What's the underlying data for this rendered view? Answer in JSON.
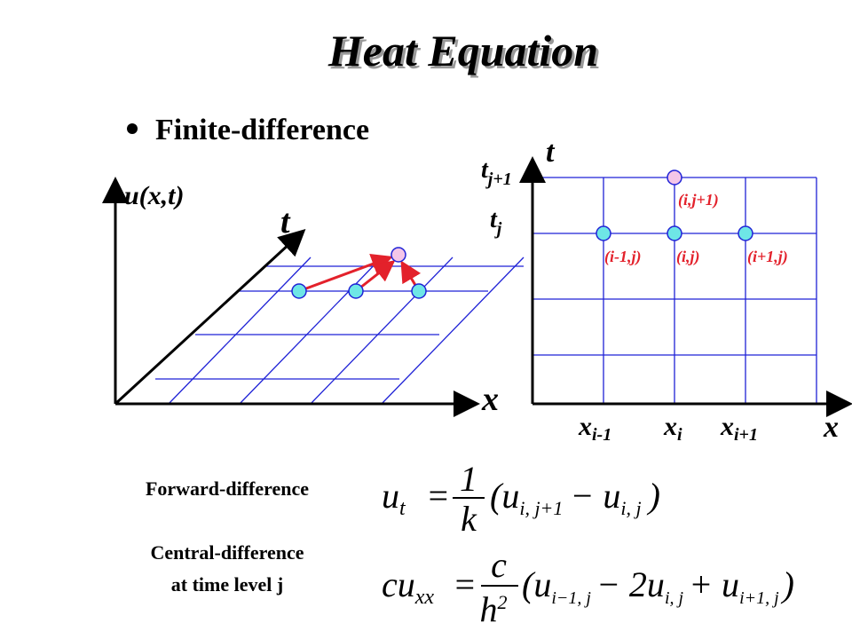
{
  "title": "Heat Equation",
  "bullet": "Finite-difference",
  "left_diagram": {
    "u_label": "u(x,t)",
    "t_label": "t",
    "x_label": "x"
  },
  "right_grid": {
    "t_label": "t",
    "x_label": "x",
    "t_ticks": [
      {
        "base": "t",
        "sub": "j+1"
      },
      {
        "base": "t",
        "sub": "j"
      }
    ],
    "x_ticks": [
      {
        "base": "x",
        "sub": "i-1"
      },
      {
        "base": "x",
        "sub": "i"
      },
      {
        "base": "x",
        "sub": "i+1"
      }
    ],
    "nodes": [
      "(i,j+1)",
      "(i-1,j)",
      "(i,j)",
      "(i+1,j)"
    ]
  },
  "equations": [
    {
      "label": "Forward-difference",
      "lhs": "u",
      "lhs_sub": "t",
      "equals": "=",
      "num": "1",
      "den": "k",
      "terms": [
        {
          "text": "(u",
          "sub": "i, j+1"
        },
        {
          "text": "− u",
          "sub": "i, j"
        },
        {
          "text": ")"
        }
      ]
    },
    {
      "label": "Central-difference",
      "label2": "at time level j",
      "lhs": "cu",
      "lhs_sub": "xx",
      "equals": "=",
      "num": "c",
      "den": "h",
      "den_sup": "2",
      "terms": [
        {
          "text": "(u",
          "sub": "i−1, j"
        },
        {
          "text": "− 2u",
          "sub": "i, j"
        },
        {
          "text": "+ u",
          "sub": "i+1, j"
        },
        {
          "text": ")"
        }
      ]
    }
  ]
}
